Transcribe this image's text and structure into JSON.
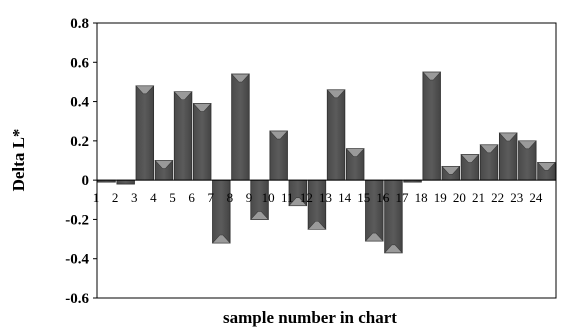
{
  "chart_data": {
    "type": "bar",
    "title": "",
    "xlabel": "sample number in chart",
    "ylabel": "Delta L*",
    "ylim": [
      -0.6,
      0.8
    ],
    "yticks": [
      "-0.6",
      "-0.4",
      "-0.2",
      "0",
      "0.2",
      "0.4",
      "0.6",
      "0.8"
    ],
    "grid": false,
    "legend": "none",
    "categories": [
      "1",
      "2",
      "3",
      "4",
      "5",
      "6",
      "7",
      "8",
      "9",
      "10",
      "11",
      "12",
      "13",
      "14",
      "15",
      "16",
      "17",
      "18",
      "19",
      "20",
      "21",
      "22",
      "23",
      "24"
    ],
    "series": [
      {
        "values": [
          -0.01,
          -0.02,
          0.48,
          0.1,
          0.45,
          0.39,
          -0.32,
          0.54,
          -0.2,
          0.25,
          -0.13,
          -0.25,
          0.46,
          0.16,
          -0.31,
          -0.37,
          -0.01,
          0.55,
          0.07,
          0.13,
          0.18,
          0.24,
          0.2,
          0.09
        ],
        "color": "#5b5b5b"
      }
    ]
  }
}
